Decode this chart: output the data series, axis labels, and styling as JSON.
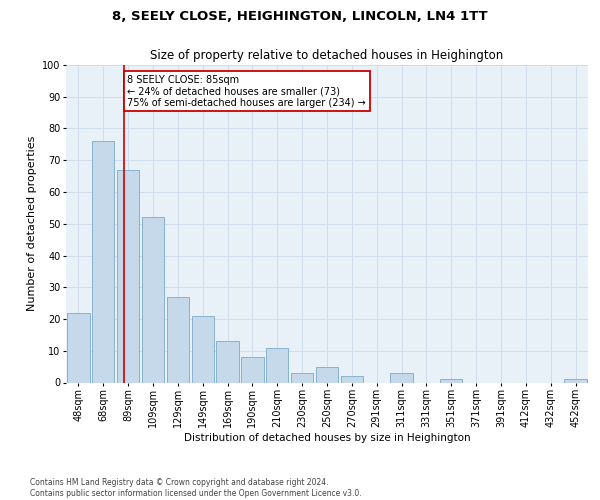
{
  "title1": "8, SEELY CLOSE, HEIGHINGTON, LINCOLN, LN4 1TT",
  "title2": "Size of property relative to detached houses in Heighington",
  "xlabel": "Distribution of detached houses by size in Heighington",
  "ylabel": "Number of detached properties",
  "footnote1": "Contains HM Land Registry data © Crown copyright and database right 2024.",
  "footnote2": "Contains public sector information licensed under the Open Government Licence v3.0.",
  "categories": [
    "48sqm",
    "68sqm",
    "89sqm",
    "109sqm",
    "129sqm",
    "149sqm",
    "169sqm",
    "190sqm",
    "210sqm",
    "230sqm",
    "250sqm",
    "270sqm",
    "291sqm",
    "311sqm",
    "331sqm",
    "351sqm",
    "371sqm",
    "391sqm",
    "412sqm",
    "432sqm",
    "452sqm"
  ],
  "values": [
    22,
    76,
    67,
    52,
    27,
    21,
    13,
    8,
    11,
    3,
    5,
    2,
    0,
    3,
    0,
    1,
    0,
    0,
    0,
    0,
    1
  ],
  "bar_color": "#c6d9ea",
  "bar_edge_color": "#7aaac8",
  "grid_color": "#ccdaeb",
  "annotation_box_text_line1": "8 SEELY CLOSE: 85sqm",
  "annotation_box_text_line2": "← 24% of detached houses are smaller (73)",
  "annotation_box_text_line3": "75% of semi-detached houses are larger (234) →",
  "annotation_box_color": "#cc0000",
  "vline_x": 1.85,
  "ylim": [
    0,
    100
  ],
  "yticks": [
    0,
    10,
    20,
    30,
    40,
    50,
    60,
    70,
    80,
    90,
    100
  ],
  "ax_facecolor": "#e8f0f8",
  "fig_bg": "#ffffff",
  "title1_fontsize": 9.5,
  "title2_fontsize": 8.5,
  "bar_fontsize": 7,
  "ylabel_fontsize": 8,
  "xlabel_fontsize": 7.5,
  "footnote_fontsize": 5.5
}
